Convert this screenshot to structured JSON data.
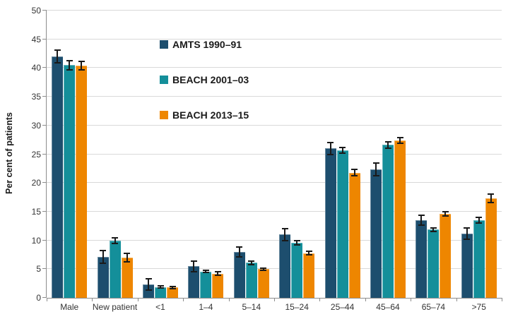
{
  "chart_data": {
    "type": "bar",
    "title": "",
    "xlabel": "",
    "ylabel": "Per cent of patients",
    "ylim": [
      0,
      50
    ],
    "yticks": [
      0,
      5,
      10,
      15,
      20,
      25,
      30,
      35,
      40,
      45,
      50
    ],
    "grid": true,
    "legend_position": "inside-top-left",
    "error_bars": true,
    "categories": [
      "Male",
      "New patient",
      "<1",
      "1–4",
      "5–14",
      "15–24",
      "25–44",
      "45–64",
      "65–74",
      ">75"
    ],
    "series": [
      {
        "name": "AMTS 1990–91",
        "color": "#1d4e6e",
        "values": [
          42.0,
          7.1,
          2.3,
          5.5,
          8.0,
          11.0,
          26.0,
          22.4,
          13.5,
          11.2
        ],
        "errors": [
          1.1,
          1.1,
          1.0,
          0.9,
          0.9,
          1.0,
          1.0,
          1.1,
          0.9,
          1.0
        ]
      },
      {
        "name": "BEACH 2001–03",
        "color": "#148f9a",
        "values": [
          40.5,
          10.0,
          1.9,
          4.6,
          6.1,
          9.6,
          25.7,
          26.6,
          11.9,
          13.5
        ],
        "errors": [
          0.8,
          0.5,
          0.2,
          0.2,
          0.3,
          0.4,
          0.5,
          0.5,
          0.3,
          0.5
        ]
      },
      {
        "name": "BEACH 2013–15",
        "color": "#ee8600",
        "values": [
          40.4,
          7.0,
          1.8,
          4.2,
          5.0,
          7.8,
          21.8,
          27.4,
          14.6,
          17.3
        ],
        "errors": [
          0.7,
          0.7,
          0.15,
          0.3,
          0.2,
          0.3,
          0.5,
          0.5,
          0.4,
          0.7
        ]
      }
    ],
    "colors": {
      "gridline": "#d9d9d9",
      "axis": "#8c8c8c",
      "error_bar": "#1a1a1a",
      "tick_text": "#333333"
    }
  }
}
